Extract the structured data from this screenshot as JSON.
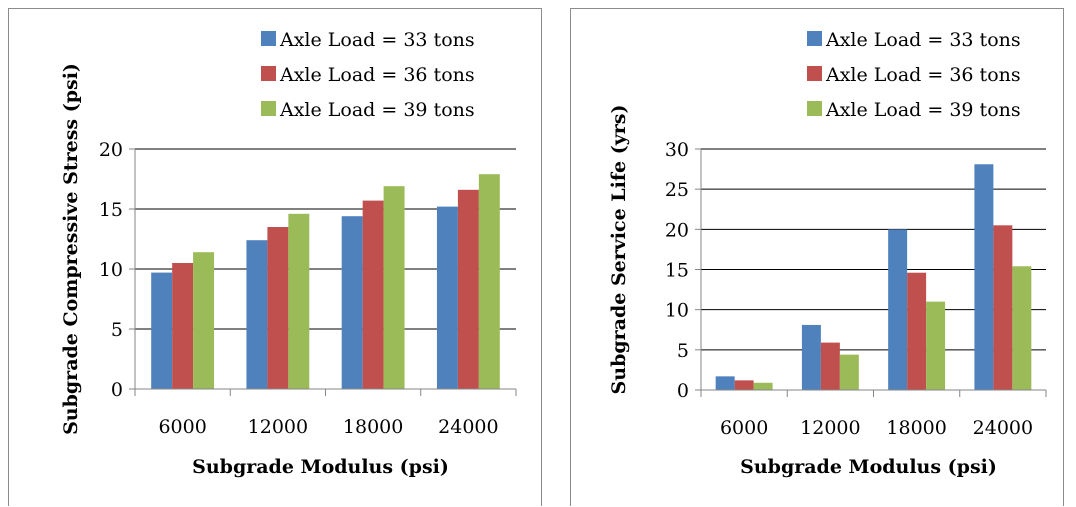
{
  "colors": {
    "series": [
      "#4f81bd",
      "#c0504d",
      "#9bbb59"
    ],
    "axis": "#868686",
    "grid": "#000000"
  },
  "chart_data": [
    {
      "type": "bar",
      "title": "",
      "categories": [
        "6000",
        "12000",
        "18000",
        "24000"
      ],
      "series": [
        {
          "name": "Axle Load = 33 tons",
          "values": [
            9.7,
            12.4,
            14.4,
            15.2
          ]
        },
        {
          "name": "Axle Load = 36 tons",
          "values": [
            10.5,
            13.5,
            15.7,
            16.6
          ]
        },
        {
          "name": "Axle Load = 39 tons",
          "values": [
            11.4,
            14.6,
            16.9,
            17.9
          ]
        }
      ],
      "xlabel": "Subgrade Modulus (psi)",
      "ylabel": "Subgrade Compressive Stress (psi)",
      "ylim": [
        0,
        20
      ],
      "yticks": [
        "0",
        "5",
        "10",
        "15",
        "20"
      ],
      "grid": true,
      "legend": "top-right"
    },
    {
      "type": "bar",
      "title": "",
      "categories": [
        "6000",
        "12000",
        "18000",
        "24000"
      ],
      "series": [
        {
          "name": "Axle Load = 33 tons",
          "values": [
            1.7,
            8.1,
            20.0,
            28.1
          ]
        },
        {
          "name": "Axle Load = 36 tons",
          "values": [
            1.2,
            5.9,
            14.6,
            20.5
          ]
        },
        {
          "name": "Axle Load = 39 tons",
          "values": [
            0.9,
            4.4,
            11.0,
            15.4
          ]
        }
      ],
      "xlabel": "Subgrade Modulus (psi)",
      "ylabel": "Subgrade Service Life (yrs)",
      "ylim": [
        0,
        30
      ],
      "yticks": [
        "0",
        "5",
        "10",
        "15",
        "20",
        "25",
        "30"
      ],
      "grid": true,
      "legend": "top-right"
    }
  ]
}
